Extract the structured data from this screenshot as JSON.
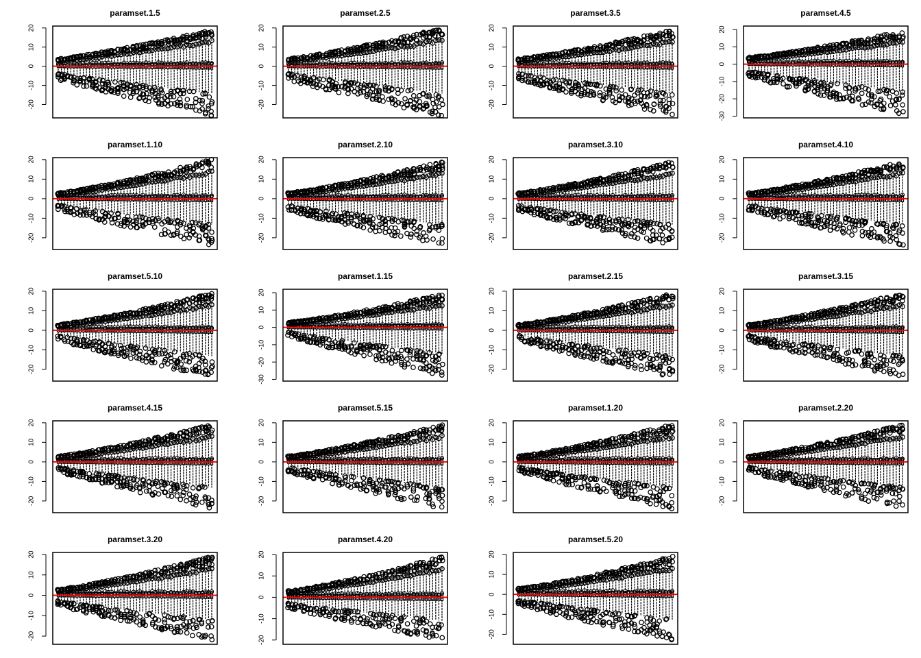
{
  "chart_data": [
    {
      "type": "boxplot",
      "title": "paramset.1.5",
      "ylim": [
        -27,
        21
      ],
      "yticks": [
        -20,
        -10,
        0,
        10,
        20
      ],
      "reference_line": {
        "y": 0,
        "color": "#ff0000"
      },
      "approx_envelope": {
        "upper_start": 4,
        "upper_end": 19,
        "lower_start": -7,
        "lower_end": -26
      },
      "seed": 11
    },
    {
      "type": "boxplot",
      "title": "paramset.2.5",
      "ylim": [
        -27,
        21
      ],
      "yticks": [
        -20,
        -10,
        0,
        10,
        20
      ],
      "reference_line": {
        "y": 0,
        "color": "#ff0000"
      },
      "approx_envelope": {
        "upper_start": 4,
        "upper_end": 20,
        "lower_start": -7,
        "lower_end": -26
      },
      "seed": 23
    },
    {
      "type": "boxplot",
      "title": "paramset.3.5",
      "ylim": [
        -27,
        21
      ],
      "yticks": [
        -20,
        -10,
        0,
        10,
        20
      ],
      "reference_line": {
        "y": 0,
        "color": "#ff0000"
      },
      "approx_envelope": {
        "upper_start": 4,
        "upper_end": 19,
        "lower_start": -7,
        "lower_end": -26
      },
      "seed": 37
    },
    {
      "type": "boxplot",
      "title": "paramset.4.5",
      "ylim": [
        -31,
        22
      ],
      "yticks": [
        -30,
        -20,
        -10,
        0,
        10,
        20
      ],
      "reference_line": {
        "y": 0,
        "color": "#ff0000"
      },
      "approx_envelope": {
        "upper_start": 4,
        "upper_end": 19,
        "lower_start": -7,
        "lower_end": -29
      },
      "seed": 41
    },
    {
      "type": "boxplot",
      "title": "paramset.1.10",
      "ylim": [
        -26,
        21
      ],
      "yticks": [
        -20,
        -10,
        0,
        10,
        20
      ],
      "reference_line": {
        "y": 0,
        "color": "#ff0000"
      },
      "approx_envelope": {
        "upper_start": 3,
        "upper_end": 20,
        "lower_start": -6,
        "lower_end": -24
      },
      "seed": 53
    },
    {
      "type": "boxplot",
      "title": "paramset.2.10",
      "ylim": [
        -26,
        21
      ],
      "yticks": [
        -20,
        -10,
        0,
        10,
        20
      ],
      "reference_line": {
        "y": 0,
        "color": "#ff0000"
      },
      "approx_envelope": {
        "upper_start": 3,
        "upper_end": 19,
        "lower_start": -6,
        "lower_end": -24
      },
      "seed": 61
    },
    {
      "type": "boxplot",
      "title": "paramset.3.10",
      "ylim": [
        -26,
        21
      ],
      "yticks": [
        -20,
        -10,
        0,
        10,
        20
      ],
      "reference_line": {
        "y": 0,
        "color": "#ff0000"
      },
      "approx_envelope": {
        "upper_start": 3,
        "upper_end": 19,
        "lower_start": -6,
        "lower_end": -24
      },
      "seed": 73
    },
    {
      "type": "boxplot",
      "title": "paramset.4.10",
      "ylim": [
        -26,
        21
      ],
      "yticks": [
        -20,
        -10,
        0,
        10,
        20
      ],
      "reference_line": {
        "y": 0,
        "color": "#ff0000"
      },
      "approx_envelope": {
        "upper_start": 3,
        "upper_end": 19,
        "lower_start": -6,
        "lower_end": -24
      },
      "seed": 83
    },
    {
      "type": "boxplot",
      "title": "paramset.5.10",
      "ylim": [
        -26,
        21
      ],
      "yticks": [
        -20,
        -10,
        0,
        10,
        20
      ],
      "reference_line": {
        "y": 0,
        "color": "#ff0000"
      },
      "approx_envelope": {
        "upper_start": 3,
        "upper_end": 19,
        "lower_start": -5,
        "lower_end": -24
      },
      "seed": 97
    },
    {
      "type": "boxplot",
      "title": "paramset.1.15",
      "ylim": [
        -31,
        22
      ],
      "yticks": [
        -30,
        -20,
        -10,
        0,
        10,
        20
      ],
      "reference_line": {
        "y": 0,
        "color": "#ff0000"
      },
      "approx_envelope": {
        "upper_start": 3,
        "upper_end": 19,
        "lower_start": -5,
        "lower_end": -28
      },
      "seed": 101
    },
    {
      "type": "boxplot",
      "title": "paramset.2.15",
      "ylim": [
        -26,
        21
      ],
      "yticks": [
        -20,
        -10,
        0,
        10,
        20
      ],
      "reference_line": {
        "y": 0,
        "color": "#ff0000"
      },
      "approx_envelope": {
        "upper_start": 3,
        "upper_end": 19,
        "lower_start": -5,
        "lower_end": -24
      },
      "seed": 113
    },
    {
      "type": "boxplot",
      "title": "paramset.3.15",
      "ylim": [
        -26,
        21
      ],
      "yticks": [
        -20,
        -10,
        0,
        10,
        20
      ],
      "reference_line": {
        "y": 0,
        "color": "#ff0000"
      },
      "approx_envelope": {
        "upper_start": 3,
        "upper_end": 19,
        "lower_start": -5,
        "lower_end": -24
      },
      "seed": 127
    },
    {
      "type": "boxplot",
      "title": "paramset.4.15",
      "ylim": [
        -26,
        21
      ],
      "yticks": [
        -20,
        -10,
        0,
        10,
        20
      ],
      "reference_line": {
        "y": 0,
        "color": "#ff0000"
      },
      "approx_envelope": {
        "upper_start": 3,
        "upper_end": 19,
        "lower_start": -5,
        "lower_end": -24
      },
      "seed": 131
    },
    {
      "type": "boxplot",
      "title": "paramset.5.15",
      "ylim": [
        -26,
        21
      ],
      "yticks": [
        -20,
        -10,
        0,
        10,
        20
      ],
      "reference_line": {
        "y": 0,
        "color": "#ff0000"
      },
      "approx_envelope": {
        "upper_start": 3,
        "upper_end": 19,
        "lower_start": -5,
        "lower_end": -24
      },
      "seed": 139
    },
    {
      "type": "boxplot",
      "title": "paramset.1.20",
      "ylim": [
        -26,
        21
      ],
      "yticks": [
        -20,
        -10,
        0,
        10,
        20
      ],
      "reference_line": {
        "y": 0,
        "color": "#ff0000"
      },
      "approx_envelope": {
        "upper_start": 3,
        "upper_end": 19,
        "lower_start": -5,
        "lower_end": -24
      },
      "seed": 149
    },
    {
      "type": "boxplot",
      "title": "paramset.2.20",
      "ylim": [
        -26,
        21
      ],
      "yticks": [
        -20,
        -10,
        0,
        10,
        20
      ],
      "reference_line": {
        "y": 0,
        "color": "#ff0000"
      },
      "approx_envelope": {
        "upper_start": 3,
        "upper_end": 19,
        "lower_start": -5,
        "lower_end": -24
      },
      "seed": 157
    },
    {
      "type": "boxplot",
      "title": "paramset.3.20",
      "ylim": [
        -24,
        21
      ],
      "yticks": [
        -20,
        -10,
        0,
        10,
        20
      ],
      "reference_line": {
        "y": 0,
        "color": "#ff0000"
      },
      "approx_envelope": {
        "upper_start": 3,
        "upper_end": 19,
        "lower_start": -5,
        "lower_end": -22
      },
      "seed": 163
    },
    {
      "type": "boxplot",
      "title": "paramset.4.20",
      "ylim": [
        -22,
        21
      ],
      "yticks": [
        -20,
        -10,
        0,
        10,
        20
      ],
      "reference_line": {
        "y": 0,
        "color": "#ff0000"
      },
      "approx_envelope": {
        "upper_start": 3,
        "upper_end": 19,
        "lower_start": -5,
        "lower_end": -20
      },
      "seed": 173
    },
    {
      "type": "boxplot",
      "title": "paramset.5.20",
      "ylim": [
        -25,
        21
      ],
      "yticks": [
        -20,
        -10,
        0,
        10,
        20
      ],
      "reference_line": {
        "y": 0,
        "color": "#ff0000"
      },
      "approx_envelope": {
        "upper_start": 3,
        "upper_end": 19,
        "lower_start": -5,
        "lower_end": -23
      },
      "seed": 181
    }
  ]
}
